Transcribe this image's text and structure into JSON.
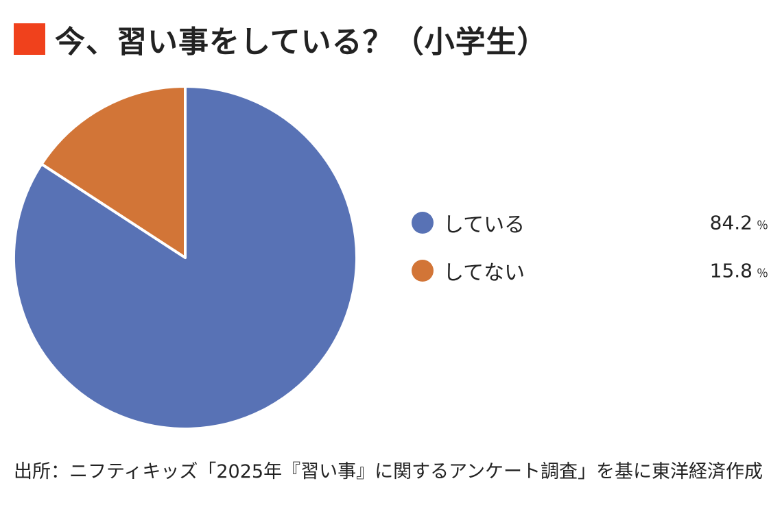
{
  "title": "今、習い事をしている？（小学生）",
  "accent_color": "#f0411c",
  "chart_data": {
    "type": "pie",
    "title": "今、習い事をしている？（小学生）",
    "start_angle_deg": 0,
    "direction": "clockwise",
    "legend_position": "right",
    "unit": "％",
    "slices": [
      {
        "label": "している",
        "value": 84.2,
        "value_text": "84.2",
        "color": "#5872b5"
      },
      {
        "label": "してない",
        "value": 15.8,
        "value_text": "15.8",
        "color": "#d27537"
      }
    ]
  },
  "source": "出所：ニフティキッズ「2025年『習い事』に関するアンケート調査」を基に東洋経済作成"
}
